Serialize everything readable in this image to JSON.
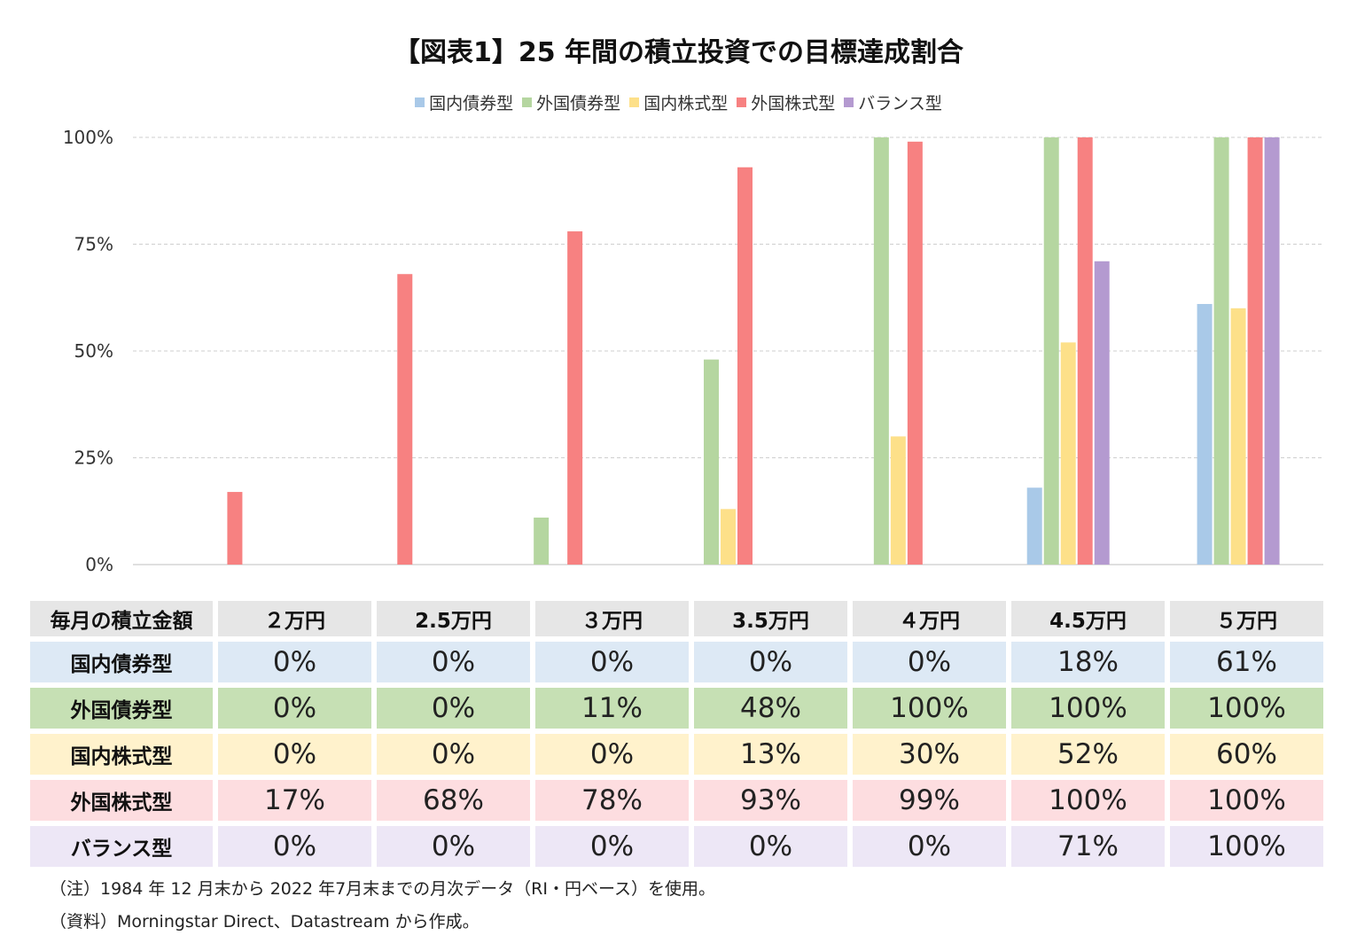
{
  "chart_data": {
    "type": "bar",
    "title": "【図表1】25 年間の積立投資での目標達成割合",
    "categories": [
      "2万円",
      "2.5万円",
      "3万円",
      "3.5万円",
      "4万円",
      "4.5万円",
      "5万円"
    ],
    "ylim": [
      0,
      100
    ],
    "yticks": [
      "0%",
      "25%",
      "50%",
      "75%",
      "100%"
    ],
    "grid": true,
    "legend_position": "top",
    "series": [
      {
        "name": "国内債券型",
        "color": "#a9c9e8",
        "values": [
          0,
          0,
          0,
          0,
          0,
          18,
          61
        ]
      },
      {
        "name": "外国債券型",
        "color": "#b5d6a0",
        "values": [
          0,
          0,
          11,
          48,
          100,
          100,
          100
        ]
      },
      {
        "name": "国内株式型",
        "color": "#fde089",
        "values": [
          0,
          0,
          0,
          13,
          30,
          52,
          60
        ]
      },
      {
        "name": "外国株式型",
        "color": "#f78181",
        "values": [
          17,
          68,
          78,
          93,
          99,
          100,
          100
        ]
      },
      {
        "name": "バランス型",
        "color": "#b49ad0",
        "values": [
          0,
          0,
          0,
          0,
          0,
          71,
          100
        ]
      }
    ]
  },
  "table": {
    "corner_label": "毎月の積立金額",
    "headers": [
      "２万円",
      "2.5万円",
      "３万円",
      "3.5万円",
      "４万円",
      "4.5万円",
      "５万円"
    ],
    "rows": [
      {
        "label": "国内債券型",
        "bg": "#dde9f5",
        "cells": [
          "0%",
          "0%",
          "0%",
          "0%",
          "0%",
          "18%",
          "61%"
        ]
      },
      {
        "label": "外国債券型",
        "bg": "#c6e0b4",
        "cells": [
          "0%",
          "0%",
          "11%",
          "48%",
          "100%",
          "100%",
          "100%"
        ]
      },
      {
        "label": "国内株式型",
        "bg": "#fff2cc",
        "cells": [
          "0%",
          "0%",
          "0%",
          "13%",
          "30%",
          "52%",
          "60%"
        ]
      },
      {
        "label": "外国株式型",
        "bg": "#fddde0",
        "cells": [
          "17%",
          "68%",
          "78%",
          "93%",
          "99%",
          "100%",
          "100%"
        ]
      },
      {
        "label": "バランス型",
        "bg": "#ede7f6",
        "cells": [
          "0%",
          "0%",
          "0%",
          "0%",
          "0%",
          "71%",
          "100%"
        ]
      }
    ]
  },
  "notes": {
    "note": "（注）1984 年 12 月末から 2022 年7月末までの月次データ（RI・円ベース）を使用。",
    "source": "（資料）Morningstar Direct、Datastream から作成。"
  }
}
